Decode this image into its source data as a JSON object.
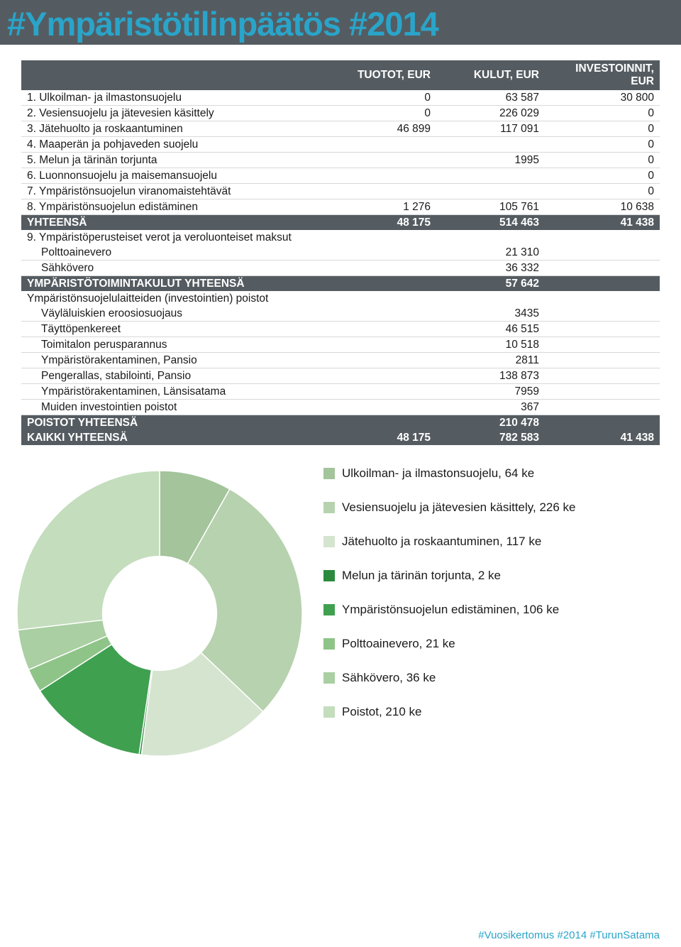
{
  "title": "#Ympäristötilinpäätös #2014",
  "title_color": "#2aa4c9",
  "title_bg": "#555c61",
  "header_row_bg": "#555c61",
  "header_text_color": "#ffffff",
  "columns": [
    "",
    "TUOTOT, EUR",
    "KULUT, EUR",
    "INVESTOINNIT, EUR"
  ],
  "rows": [
    {
      "label": "1. Ulkoilman- ja ilmastonsuojelu",
      "c1": "0",
      "c2": "63 587",
      "c3": "30 800"
    },
    {
      "label": "2. Vesiensuojelu ja jätevesien käsittely",
      "c1": "0",
      "c2": "226 029",
      "c3": "0"
    },
    {
      "label": "3. Jätehuolto ja roskaantuminen",
      "c1": "46 899",
      "c2": "117 091",
      "c3": "0"
    },
    {
      "label": "4. Maaperän ja pohjaveden suojelu",
      "c1": "",
      "c2": "",
      "c3": "0"
    },
    {
      "label": "5. Melun ja tärinän torjunta",
      "c1": "",
      "c2": "1995",
      "c3": "0"
    },
    {
      "label": "6. Luonnonsuojelu ja maisemansuojelu",
      "c1": "",
      "c2": "",
      "c3": "0"
    },
    {
      "label": "7. Ympäristönsuojelun viranomaistehtävät",
      "c1": "",
      "c2": "",
      "c3": "0"
    },
    {
      "label": "8. Ympäristönsuojelun edistäminen",
      "c1": "1 276",
      "c2": "105 761",
      "c3": "10 638"
    }
  ],
  "yhteensa": {
    "label": "YHTEENSÄ",
    "c1": "48 175",
    "c2": "514 463",
    "c3": "41 438"
  },
  "row9": {
    "label": "9. Ympäristöperusteiset verot ja veroluonteiset maksut"
  },
  "sub1": {
    "label": "Polttoainevero",
    "c2": "21 310"
  },
  "sub2": {
    "label": "Sähkövero",
    "c2": "36 332"
  },
  "ymp_kulut": {
    "label": "YMPÄRISTÖTOIMINTAKULUT YHTEENSÄ",
    "c2": "57 642"
  },
  "invest_head": {
    "label": "Ympäristönsuojelulaitteiden (investointien) poistot"
  },
  "inv1": {
    "label": "Väyläluiskien eroosiosuojaus",
    "c2": "3435"
  },
  "inv2": {
    "label": "Täyttöpenkereet",
    "c2": "46 515"
  },
  "inv3": {
    "label": "Toimitalon perusparannus",
    "c2": "10 518"
  },
  "inv4": {
    "label": "Ympäristörakentaminen, Pansio",
    "c2": "2811"
  },
  "inv5": {
    "label": "Pengerallas, stabilointi, Pansio",
    "c2": "138 873"
  },
  "inv6": {
    "label": "Ympäristörakentaminen, Länsisatama",
    "c2": "7959"
  },
  "inv7": {
    "label": "Muiden investointien poistot",
    "c2": "367"
  },
  "poistot": {
    "label": "POISTOT YHTEENSÄ",
    "c2": "210 478"
  },
  "kaikki": {
    "label": "KAIKKI YHTEENSÄ",
    "c1": "48 175",
    "c2": "782 583",
    "c3": "41 438"
  },
  "donut": {
    "size": 410,
    "inner_ratio": 0.4,
    "background": "#ffffff",
    "slices": [
      {
        "label": "Ulkoilman- ja ilmastonsuojelu, 64 ke",
        "value": 64,
        "color": "#a4c49b"
      },
      {
        "label": "Vesiensuojelu ja jätevesien käsittely, 226 ke",
        "value": 226,
        "color": "#b7d2ae"
      },
      {
        "label": "Jätehuolto ja roskaantuminen, 117 ke",
        "value": 117,
        "color": "#d5e4cf"
      },
      {
        "label": "Melun ja tärinän torjunta, 2 ke",
        "value": 2,
        "color": "#2b8a3e"
      },
      {
        "label": "Ympäristönsuojelun edistäminen, 106 ke",
        "value": 106,
        "color": "#3fa050"
      },
      {
        "label": "Polttoainevero, 21 ke",
        "value": 21,
        "color": "#8fc488"
      },
      {
        "label": "Sähkövero, 36 ke",
        "value": 36,
        "color": "#a9cfa2"
      },
      {
        "label": "Poistot, 210 ke",
        "value": 210,
        "color": "#c3ddbd"
      }
    ]
  },
  "footer": "#Vuosikertomus #2014 #TurunSatama",
  "footer_color": "#2aa4c9"
}
